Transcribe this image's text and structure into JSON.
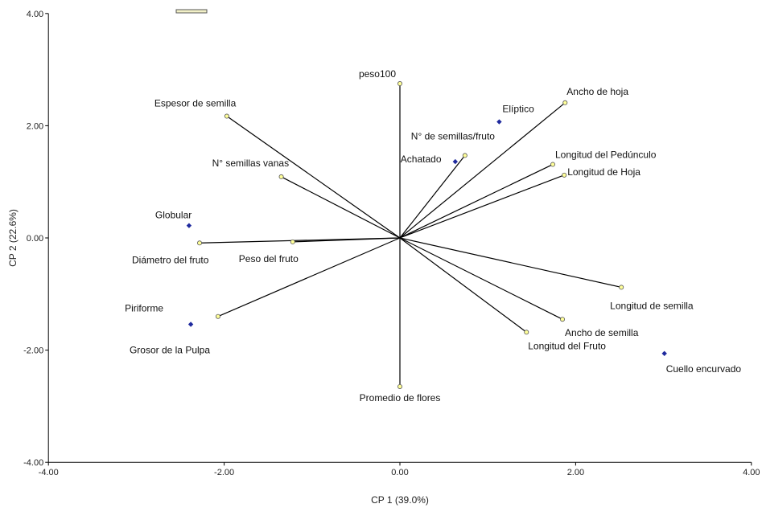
{
  "chart_data": {
    "type": "scatter",
    "subtype": "PCA biplot",
    "xlabel": "CP 1 (39.0%)",
    "ylabel": "CP 2 (22.6%)",
    "xlim": [
      -4,
      4
    ],
    "ylim": [
      -4,
      4
    ],
    "xticks": [
      "-4.00",
      "-2.00",
      "0.00",
      "2.00",
      "4.00"
    ],
    "yticks": [
      "4.00",
      "2.00",
      "0.00",
      "-2.00",
      "-4.00"
    ],
    "grid": false,
    "colors": {
      "vector": "#000000",
      "vector_end": "#ffff99",
      "point": "#1f2a9e"
    },
    "variables": [
      {
        "name": "peso100",
        "x": 0.0,
        "y": 2.75
      },
      {
        "name": "Espesor de semilla",
        "x": -1.97,
        "y": 2.17
      },
      {
        "name": "N° semillas vanas",
        "x": -1.35,
        "y": 1.09
      },
      {
        "name": "Diámetro del fruto",
        "x": -2.28,
        "y": -0.09
      },
      {
        "name": "Peso del fruto",
        "x": -1.22,
        "y": -0.07
      },
      {
        "name": "Grosor de la Pulpa",
        "x": -2.07,
        "y": -1.4
      },
      {
        "name": "Promedio de flores",
        "x": 0.0,
        "y": -2.65
      },
      {
        "name": "N° de semillas/fruto",
        "x": 0.74,
        "y": 1.47
      },
      {
        "name": "Ancho de hoja",
        "x": 1.88,
        "y": 2.41
      },
      {
        "name": "Longitud del Pedúnculo",
        "x": 1.74,
        "y": 1.31
      },
      {
        "name": "Longitud de Hoja",
        "x": 1.87,
        "y": 1.12
      },
      {
        "name": "Longitud de semilla",
        "x": 2.52,
        "y": -0.88
      },
      {
        "name": "Ancho de semilla",
        "x": 1.85,
        "y": -1.45
      },
      {
        "name": "Longitud del Fruto",
        "x": 1.44,
        "y": -1.68
      }
    ],
    "groups": [
      {
        "name": "Elíptico",
        "x": 1.13,
        "y": 2.07
      },
      {
        "name": "Achatado",
        "x": 0.63,
        "y": 1.36
      },
      {
        "name": "Globular",
        "x": -2.4,
        "y": 0.22
      },
      {
        "name": "Piriforme",
        "x": -2.38,
        "y": -1.54
      },
      {
        "name": "Cuello encurvado",
        "x": 3.01,
        "y": -2.06
      }
    ]
  }
}
